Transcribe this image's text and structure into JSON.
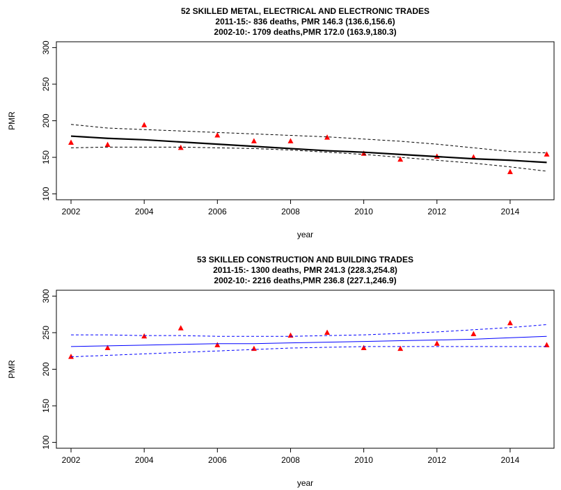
{
  "chart_data": [
    {
      "type": "line",
      "title": [
        "52 SKILLED METAL, ELECTRICAL AND ELECTRONIC TRADES",
        "2011-15:- 836 deaths, PMR 146.3 (136.6,156.6)",
        "2002-10:- 1709 deaths,PMR 172.0 (163.9,180.3)"
      ],
      "x_label": "year",
      "y_label": "PMR",
      "x": [
        2002,
        2003,
        2004,
        2005,
        2006,
        2007,
        2008,
        2009,
        2010,
        2011,
        2012,
        2013,
        2014,
        2015
      ],
      "xlim": [
        2001.6,
        2015.2
      ],
      "xticks": [
        2002,
        2004,
        2006,
        2008,
        2010,
        2012,
        2014
      ],
      "ylim": [
        92,
        308
      ],
      "yticks": [
        100,
        150,
        200,
        250,
        300
      ],
      "series": [
        {
          "style": "points",
          "color": "#ff0000",
          "values": [
            170,
            167,
            194,
            163,
            180,
            172,
            172,
            177,
            155,
            147,
            151,
            150,
            130,
            154
          ]
        },
        {
          "style": "solid",
          "color": "#000000",
          "values": [
            179,
            176,
            174,
            171,
            168,
            165,
            162,
            159,
            157,
            154,
            151,
            148,
            146,
            143
          ]
        },
        {
          "style": "dashed",
          "color": "#000000",
          "values": [
            195,
            190,
            188,
            186,
            184,
            182,
            180,
            178,
            175,
            172,
            168,
            163,
            158,
            156
          ]
        },
        {
          "style": "dashed",
          "color": "#000000",
          "values": [
            163,
            164,
            164,
            164,
            163,
            162,
            160,
            157,
            154,
            150,
            146,
            142,
            137,
            131
          ]
        }
      ]
    },
    {
      "type": "line",
      "title": [
        "53 SKILLED CONSTRUCTION AND BUILDING TRADES",
        "2011-15:- 1300 deaths, PMR 241.3 (228.3,254.8)",
        "2002-10:- 2216 deaths,PMR 236.8 (227.1,246.9)"
      ],
      "x_label": "year",
      "y_label": "PMR",
      "x": [
        2002,
        2003,
        2004,
        2005,
        2006,
        2007,
        2008,
        2009,
        2010,
        2011,
        2012,
        2013,
        2014,
        2015
      ],
      "xlim": [
        2001.6,
        2015.2
      ],
      "xticks": [
        2002,
        2004,
        2006,
        2008,
        2010,
        2012,
        2014
      ],
      "ylim": [
        92,
        308
      ],
      "yticks": [
        100,
        150,
        200,
        250,
        300
      ],
      "series": [
        {
          "style": "points",
          "color": "#ff0000",
          "values": [
            217,
            229,
            245,
            256,
            233,
            228,
            246,
            250,
            229,
            228,
            235,
            248,
            263,
            233
          ]
        },
        {
          "style": "solid",
          "color": "#0000ff",
          "values": [
            231,
            232,
            233,
            234,
            235,
            235,
            236,
            237,
            238,
            239,
            240,
            241,
            243,
            245
          ]
        },
        {
          "style": "dashed",
          "color": "#0000ff",
          "values": [
            247,
            247,
            246,
            246,
            245,
            245,
            245,
            246,
            247,
            249,
            251,
            254,
            257,
            261
          ]
        },
        {
          "style": "dashed",
          "color": "#0000ff",
          "values": [
            217,
            219,
            221,
            223,
            225,
            227,
            229,
            230,
            231,
            231,
            231,
            231,
            231,
            231
          ]
        }
      ]
    }
  ]
}
